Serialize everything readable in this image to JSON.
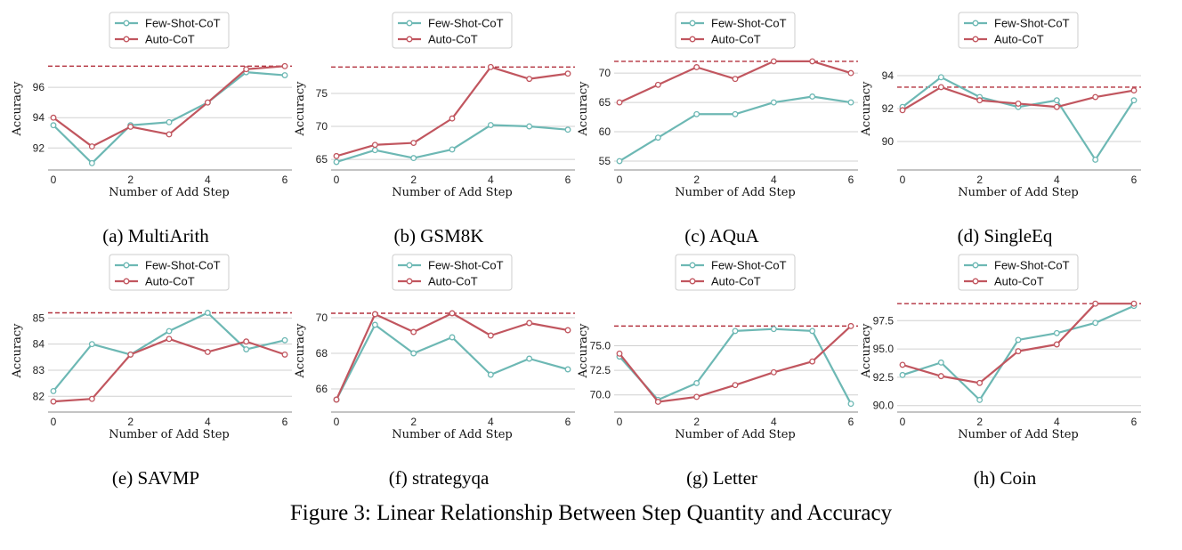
{
  "figure_caption": "Figure 3: Linear Relationship Between Step Quantity and Accuracy",
  "colors": {
    "few_shot": "#6db8b4",
    "auto": "#c1565f",
    "ref": "#b3323f",
    "grid": "#d0d0d0"
  },
  "chart_data": [
    {
      "type": "line",
      "caption": "(a)  MultiArith",
      "xlabel": "Number of Add Step",
      "ylabel": "Accuracy",
      "x": [
        0,
        1,
        2,
        3,
        4,
        5,
        6
      ],
      "xticks": [
        0,
        2,
        4,
        6
      ],
      "xtick_labels": [
        "0",
        "2",
        "4",
        "6"
      ],
      "ylim": [
        90.9,
        98.3
      ],
      "yticks": [
        92,
        94,
        96
      ],
      "ytick_labels": [
        "92",
        "94",
        "96"
      ],
      "grid": true,
      "legend": "top-center",
      "reference_line": 97.4,
      "series": [
        {
          "name": "Few-Shot-CoT",
          "values": [
            93.5,
            91.0,
            93.5,
            93.7,
            95.0,
            97.0,
            96.8
          ]
        },
        {
          "name": "Auto-CoT",
          "values": [
            94.0,
            92.1,
            93.4,
            92.9,
            95.0,
            97.2,
            97.4
          ]
        }
      ]
    },
    {
      "type": "line",
      "caption": "(b)  GSM8K",
      "xlabel": "Number of Add Step",
      "ylabel": "Accuracy",
      "x": [
        0,
        1,
        2,
        3,
        4,
        5,
        6
      ],
      "xticks": [
        0,
        2,
        4,
        6
      ],
      "xtick_labels": [
        "0",
        "2",
        "4",
        "6"
      ],
      "ylim": [
        64.2,
        81.2
      ],
      "yticks": [
        65,
        70,
        75
      ],
      "ytick_labels": [
        "65",
        "70",
        "75"
      ],
      "grid": true,
      "legend": "top-center",
      "reference_line": 79.0,
      "series": [
        {
          "name": "Few-Shot-CoT",
          "values": [
            64.6,
            66.4,
            65.2,
            66.5,
            70.2,
            70.0,
            69.5
          ]
        },
        {
          "name": "Auto-CoT",
          "values": [
            65.5,
            67.2,
            67.5,
            71.2,
            79.0,
            77.2,
            78.0
          ]
        }
      ]
    },
    {
      "type": "line",
      "caption": "(c)  AQuA",
      "xlabel": "Number of Add Step",
      "ylabel": "Accuracy",
      "x": [
        0,
        1,
        2,
        3,
        4,
        5,
        6
      ],
      "xticks": [
        0,
        2,
        4,
        6
      ],
      "xtick_labels": [
        "0",
        "2",
        "4",
        "6"
      ],
      "ylim": [
        54.4,
        73.5
      ],
      "yticks": [
        55,
        60,
        65,
        70
      ],
      "ytick_labels": [
        "55",
        "60",
        "65",
        "70"
      ],
      "grid": true,
      "legend": "top-center",
      "reference_line": 72.0,
      "series": [
        {
          "name": "Few-Shot-CoT",
          "values": [
            55.0,
            59.0,
            63.0,
            63.0,
            65.0,
            66.0,
            65.0
          ]
        },
        {
          "name": "Auto-CoT",
          "values": [
            65.0,
            68.0,
            71.0,
            69.0,
            72.0,
            72.0,
            70.0
          ]
        }
      ]
    },
    {
      "type": "line",
      "caption": "(d)  SingleEq",
      "xlabel": "Number of Add Step",
      "ylabel": "Accuracy",
      "x": [
        0,
        1,
        2,
        3,
        4,
        5,
        6
      ],
      "xticks": [
        0,
        2,
        4,
        6
      ],
      "xtick_labels": [
        "0",
        "2",
        "4",
        "6"
      ],
      "ylim": [
        88.6,
        95.4
      ],
      "yticks": [
        90,
        92,
        94
      ],
      "ytick_labels": [
        "90",
        "92",
        "94"
      ],
      "grid": true,
      "legend": "top-center",
      "reference_line": 93.3,
      "series": [
        {
          "name": "Few-Shot-CoT",
          "values": [
            92.1,
            93.9,
            92.7,
            92.1,
            92.5,
            88.9,
            92.5
          ]
        },
        {
          "name": "Auto-CoT",
          "values": [
            91.9,
            93.3,
            92.5,
            92.3,
            92.1,
            92.7,
            93.1
          ]
        }
      ]
    },
    {
      "type": "line",
      "caption": "(e)  SAVMP",
      "xlabel": "Number of Add Step",
      "ylabel": "Accuracy",
      "x": [
        0,
        1,
        2,
        3,
        4,
        5,
        6
      ],
      "xticks": [
        0,
        2,
        4,
        6
      ],
      "xtick_labels": [
        "0",
        "2",
        "4",
        "6"
      ],
      "ylim": [
        81.6,
        85.9
      ],
      "yticks": [
        82,
        83,
        84,
        85
      ],
      "ytick_labels": [
        "82",
        "83",
        "84",
        "85"
      ],
      "grid": true,
      "legend": "top-center",
      "reference_line": 85.2,
      "series": [
        {
          "name": "Few-Shot-CoT",
          "values": [
            82.2,
            84.0,
            83.6,
            84.5,
            85.2,
            83.8,
            84.15
          ]
        },
        {
          "name": "Auto-CoT",
          "values": [
            81.8,
            81.9,
            83.6,
            84.2,
            83.7,
            84.1,
            83.6
          ]
        }
      ]
    },
    {
      "type": "line",
      "caption": "(f)  strategyqa",
      "xlabel": "Number of Add Step",
      "ylabel": "Accuracy",
      "x": [
        0,
        1,
        2,
        3,
        4,
        5,
        6
      ],
      "xticks": [
        0,
        2,
        4,
        6
      ],
      "xtick_labels": [
        "0",
        "2",
        "4",
        "6"
      ],
      "ylim": [
        65.0,
        71.3
      ],
      "yticks": [
        66,
        68,
        70
      ],
      "ytick_labels": [
        "66",
        "68",
        "70"
      ],
      "grid": true,
      "legend": "top-center",
      "reference_line": 70.25,
      "series": [
        {
          "name": "Few-Shot-CoT",
          "values": [
            65.4,
            69.6,
            68.0,
            68.9,
            66.8,
            67.7,
            67.1
          ]
        },
        {
          "name": "Auto-CoT",
          "values": [
            65.4,
            70.2,
            69.2,
            70.25,
            69.0,
            69.7,
            69.3
          ]
        }
      ]
    },
    {
      "type": "line",
      "caption": "(g)  Letter",
      "xlabel": "Number of Add Step",
      "ylabel": "Accuracy",
      "x": [
        0,
        1,
        2,
        3,
        4,
        5,
        6
      ],
      "xticks": [
        0,
        2,
        4,
        6
      ],
      "xtick_labels": [
        "0",
        "2",
        "4",
        "6"
      ],
      "ylim": [
        68.8,
        80.2
      ],
      "yticks": [
        70.0,
        72.5,
        75.0
      ],
      "ytick_labels": [
        "70.0",
        "72.5",
        "75.0"
      ],
      "grid": true,
      "legend": "top-center",
      "reference_line": 77.0,
      "series": [
        {
          "name": "Few-Shot-CoT",
          "values": [
            73.9,
            69.5,
            71.2,
            76.5,
            76.7,
            76.5,
            69.1
          ]
        },
        {
          "name": "Auto-CoT",
          "values": [
            74.2,
            69.3,
            69.8,
            71.0,
            72.3,
            73.4,
            77.0
          ]
        }
      ]
    },
    {
      "type": "line",
      "caption": "(h)  Coin",
      "xlabel": "Number of Add Step",
      "ylabel": "Accuracy",
      "x": [
        0,
        1,
        2,
        3,
        4,
        5,
        6
      ],
      "xticks": [
        0,
        2,
        4,
        6
      ],
      "xtick_labels": [
        "0",
        "2",
        "4",
        "6"
      ],
      "ylim": [
        89.9,
        99.8
      ],
      "yticks": [
        90.0,
        92.5,
        95.0,
        97.5
      ],
      "ytick_labels": [
        "90.0",
        "92.5",
        "95.0",
        "97.5"
      ],
      "grid": true,
      "legend": "top-center",
      "reference_line": 99.0,
      "series": [
        {
          "name": "Few-Shot-CoT",
          "values": [
            92.7,
            93.8,
            90.5,
            95.8,
            96.4,
            97.3,
            98.8
          ]
        },
        {
          "name": "Auto-CoT",
          "values": [
            93.6,
            92.6,
            92.0,
            94.8,
            95.4,
            99.0,
            99.0
          ]
        }
      ]
    }
  ]
}
